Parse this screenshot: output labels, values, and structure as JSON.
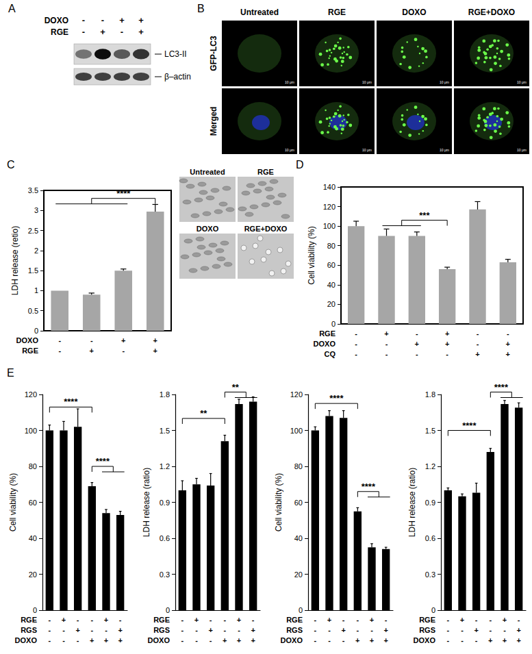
{
  "figure": {
    "panel_labels": [
      "A",
      "B",
      "C",
      "D",
      "E"
    ],
    "blot": {
      "treatments": [
        {
          "name": "DOXO",
          "signs": [
            "-",
            "-",
            "+",
            "+"
          ]
        },
        {
          "name": "RGE",
          "signs": [
            "-",
            "+",
            "-",
            "+"
          ]
        }
      ],
      "bands": [
        "LC3-II",
        "β–actin"
      ]
    },
    "microscopy": {
      "columns": [
        "Untreated",
        "RGE",
        "DOXO",
        "RGE+DOXO"
      ],
      "rows": [
        "GFP-LC3",
        "Merged"
      ],
      "scale": "10 μm"
    },
    "micrographs": {
      "labels": [
        "Untreated",
        "RGE",
        "DOXO",
        "RGE+DOXO"
      ]
    }
  },
  "chart_data": [
    {
      "type": "bar",
      "y_label": "LDH release (retio)",
      "treatments": [
        {
          "name": "DOXO",
          "signs": [
            "-",
            "-",
            "+",
            "+"
          ]
        },
        {
          "name": "RGE",
          "signs": [
            "-",
            "+",
            "-",
            "+"
          ]
        }
      ],
      "values": [
        1.0,
        0.9,
        1.5,
        2.97
      ],
      "errors": [
        0,
        0.04,
        0.04,
        0.18
      ],
      "color": "#a6a6a6",
      "ylim": [
        0,
        3.5
      ],
      "yticks": [
        0,
        0.5,
        1,
        1.5,
        2,
        2.5,
        3,
        3.5
      ],
      "grid": false,
      "annotations": [
        {
          "text": "****",
          "left": [
            0,
            1,
            2
          ],
          "right": [
            3
          ],
          "y": 3.3
        }
      ]
    },
    {
      "type": "bar",
      "y_label": "Cell viability (%)",
      "treatments": [
        {
          "name": "RGE",
          "signs": [
            "-",
            "+",
            "-",
            "+",
            "-",
            "-"
          ]
        },
        {
          "name": "DOXO",
          "signs": [
            "-",
            "-",
            "+",
            "+",
            "-",
            "+"
          ]
        },
        {
          "name": "CQ",
          "signs": [
            "-",
            "-",
            "-",
            "-",
            "+",
            "+"
          ]
        }
      ],
      "values": [
        100,
        90,
        90,
        56,
        117,
        63
      ],
      "errors": [
        5,
        7,
        4,
        2,
        8,
        3
      ],
      "color": "#a6a6a6",
      "ylim": [
        0,
        140
      ],
      "yticks": [
        0,
        20,
        40,
        60,
        80,
        100,
        120,
        140
      ],
      "grid": false,
      "annotations": [
        {
          "text": "***",
          "left": [
            1,
            2
          ],
          "right": [
            3
          ],
          "y": 106
        }
      ]
    },
    {
      "type": "bar",
      "y_label": "Cell viability (%)",
      "treatments": [
        {
          "name": "RGE",
          "signs": [
            "-",
            "+",
            "-",
            "-",
            "+",
            "-"
          ]
        },
        {
          "name": "RGS",
          "signs": [
            "-",
            "-",
            "+",
            "-",
            "-",
            "+"
          ]
        },
        {
          "name": "DOXO",
          "signs": [
            "-",
            "-",
            "-",
            "+",
            "+",
            "+"
          ]
        }
      ],
      "values": [
        100,
        100,
        102,
        69,
        54,
        53
      ],
      "errors": [
        3,
        5,
        10,
        2,
        2,
        2
      ],
      "color": "#000000",
      "ylim": [
        0,
        120
      ],
      "yticks": [
        0,
        20,
        40,
        60,
        80,
        100,
        120
      ],
      "grid": false,
      "annotations": [
        {
          "text": "****",
          "left": [
            0
          ],
          "right": [
            3
          ],
          "y": 113
        },
        {
          "text": "****",
          "left": [
            3
          ],
          "right": [
            4,
            5
          ],
          "y": 80
        }
      ]
    },
    {
      "type": "bar",
      "y_label": "LDH release (ratio)",
      "treatments": [
        {
          "name": "RGE",
          "signs": [
            "-",
            "+",
            "-",
            "-",
            "+",
            "-"
          ]
        },
        {
          "name": "RGS",
          "signs": [
            "-",
            "-",
            "+",
            "-",
            "-",
            "+"
          ]
        },
        {
          "name": "DOXO",
          "signs": [
            "-",
            "-",
            "-",
            "+",
            "+",
            "+"
          ]
        }
      ],
      "values": [
        1.0,
        1.05,
        1.04,
        1.41,
        1.72,
        1.74
      ],
      "errors": [
        0.08,
        0.05,
        0.1,
        0.05,
        0.04,
        0.04
      ],
      "color": "#000000",
      "ylim": [
        0,
        1.8
      ],
      "yticks": [
        0,
        0.3,
        0.6,
        0.9,
        1.2,
        1.5,
        1.8
      ],
      "grid": false,
      "annotations": [
        {
          "text": "**",
          "left": [
            0
          ],
          "right": [
            3
          ],
          "y": 1.6
        },
        {
          "text": "**",
          "left": [
            3
          ],
          "right": [
            4,
            5
          ],
          "y": 1.82
        }
      ]
    },
    {
      "type": "bar",
      "y_label": "Cell viability (%)",
      "treatments": [
        {
          "name": "RGE",
          "signs": [
            "-",
            "+",
            "-",
            "-",
            "+",
            "-"
          ]
        },
        {
          "name": "RGS",
          "signs": [
            "-",
            "-",
            "+",
            "-",
            "-",
            "+"
          ]
        },
        {
          "name": "DOXO",
          "signs": [
            "-",
            "-",
            "-",
            "+",
            "+",
            "+"
          ]
        }
      ],
      "values": [
        100,
        108,
        107,
        55,
        35,
        34
      ],
      "errors": [
        2,
        3,
        4,
        2,
        2,
        1
      ],
      "color": "#000000",
      "ylim": [
        0,
        120
      ],
      "yticks": [
        0,
        20,
        40,
        60,
        80,
        100,
        120
      ],
      "grid": false,
      "annotations": [
        {
          "text": "****",
          "left": [
            0
          ],
          "right": [
            3
          ],
          "y": 115
        },
        {
          "text": "****",
          "left": [
            3
          ],
          "right": [
            4,
            5
          ],
          "y": 66
        }
      ]
    },
    {
      "type": "bar",
      "y_label": "LDH release (ratio)",
      "treatments": [
        {
          "name": "RGE",
          "signs": [
            "-",
            "+",
            "-",
            "-",
            "+",
            "-"
          ]
        },
        {
          "name": "RGS",
          "signs": [
            "-",
            "-",
            "+",
            "-",
            "-",
            "+"
          ]
        },
        {
          "name": "DOXO",
          "signs": [
            "-",
            "-",
            "-",
            "+",
            "+",
            "+"
          ]
        }
      ],
      "values": [
        1.0,
        0.95,
        0.98,
        1.32,
        1.72,
        1.69
      ],
      "errors": [
        0.02,
        0.02,
        0.08,
        0.03,
        0.03,
        0.04
      ],
      "color": "#000000",
      "ylim": [
        0,
        1.8
      ],
      "yticks": [
        0,
        0.3,
        0.6,
        0.9,
        1.2,
        1.5,
        1.8
      ],
      "grid": false,
      "annotations": [
        {
          "text": "****",
          "left": [
            0
          ],
          "right": [
            3
          ],
          "y": 1.5
        },
        {
          "text": "****",
          "left": [
            3
          ],
          "right": [
            4,
            5
          ],
          "y": 1.82
        }
      ]
    }
  ]
}
